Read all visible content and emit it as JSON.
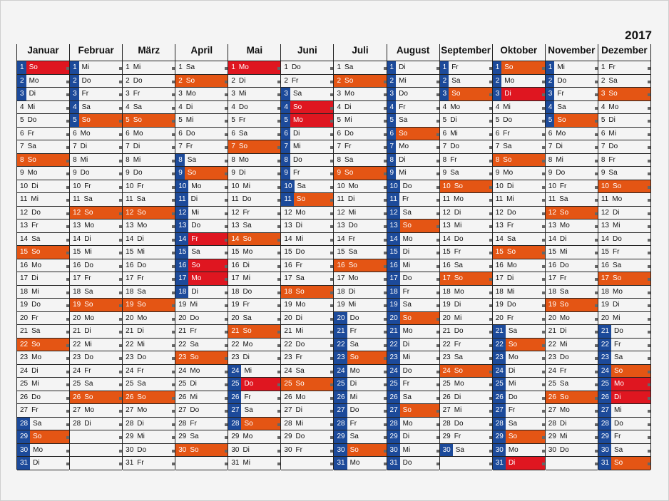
{
  "year": "2017",
  "weekdays": [
    "So",
    "Mo",
    "Di",
    "Mi",
    "Do",
    "Fr",
    "Sa"
  ],
  "colors": {
    "school_holiday": "#1c4a9a",
    "sunday": "#e45514",
    "public_holiday": "#df1620"
  },
  "months": [
    {
      "name": "Januar",
      "days": 31,
      "first_weekday": "So",
      "school_holidays": [
        [
          1,
          3
        ],
        [
          28,
          31
        ]
      ],
      "holidays": [
        1
      ]
    },
    {
      "name": "Februar",
      "days": 28,
      "first_weekday": "Mi",
      "school_holidays": [
        [
          1,
          5
        ]
      ],
      "holidays": []
    },
    {
      "name": "März",
      "days": 31,
      "first_weekday": "Mi",
      "school_holidays": [],
      "holidays": []
    },
    {
      "name": "April",
      "days": 30,
      "first_weekday": "Sa",
      "school_holidays": [
        [
          8,
          18
        ]
      ],
      "holidays": [
        14,
        16,
        17
      ]
    },
    {
      "name": "Mai",
      "days": 31,
      "first_weekday": "Mo",
      "school_holidays": [
        [
          24,
          28
        ]
      ],
      "holidays": [
        1,
        25
      ]
    },
    {
      "name": "Juni",
      "days": 30,
      "first_weekday": "Do",
      "school_holidays": [
        [
          3,
          11
        ]
      ],
      "holidays": [
        4,
        5
      ]
    },
    {
      "name": "Juli",
      "days": 31,
      "first_weekday": "Sa",
      "school_holidays": [
        [
          20,
          31
        ]
      ],
      "holidays": []
    },
    {
      "name": "August",
      "days": 31,
      "first_weekday": "Di",
      "school_holidays": [
        [
          1,
          31
        ]
      ],
      "holidays": []
    },
    {
      "name": "September",
      "days": 30,
      "first_weekday": "Fr",
      "school_holidays": [
        [
          1,
          3
        ],
        [
          30,
          30
        ]
      ],
      "holidays": []
    },
    {
      "name": "Oktober",
      "days": 31,
      "first_weekday": "So",
      "school_holidays": [
        [
          1,
          3
        ],
        [
          21,
          31
        ]
      ],
      "holidays": [
        3,
        31
      ]
    },
    {
      "name": "November",
      "days": 30,
      "first_weekday": "Mi",
      "school_holidays": [
        [
          1,
          5
        ]
      ],
      "holidays": []
    },
    {
      "name": "Dezember",
      "days": 31,
      "first_weekday": "Fr",
      "school_holidays": [
        [
          21,
          31
        ]
      ],
      "holidays": [
        25,
        26
      ]
    }
  ]
}
